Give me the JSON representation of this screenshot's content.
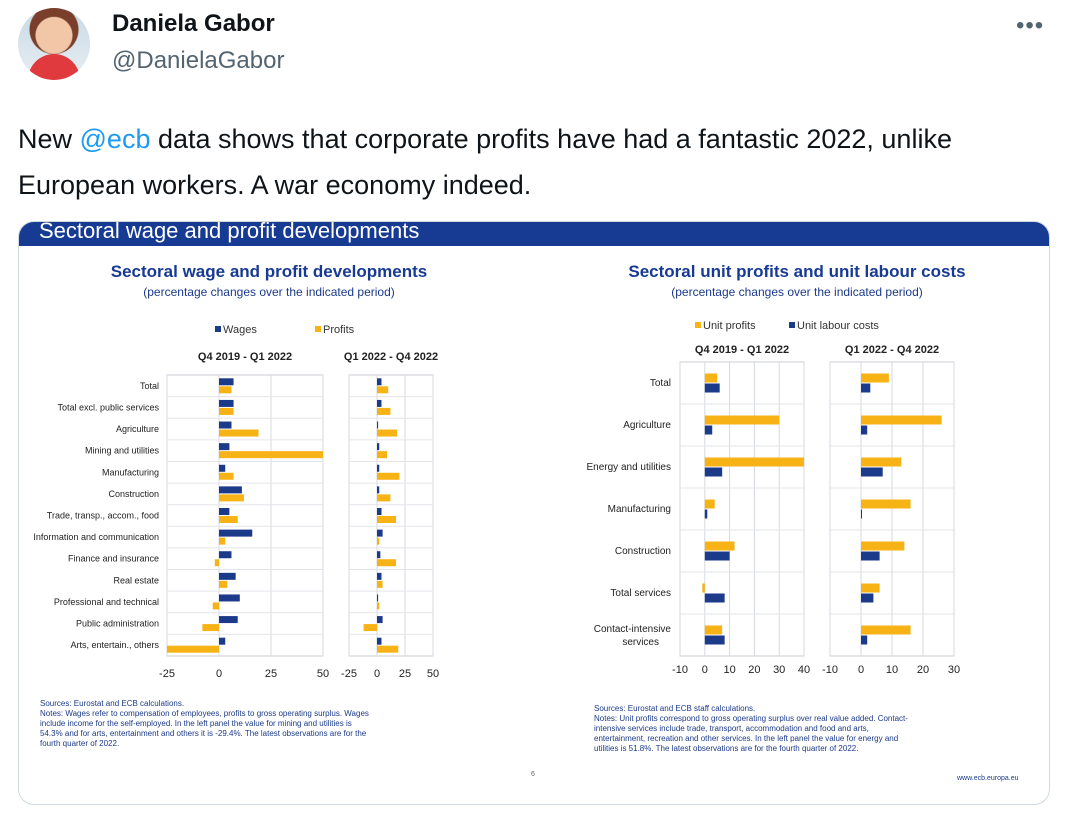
{
  "author": {
    "name": "Daniela Gabor",
    "handle": "@DanielaGabor"
  },
  "menu_icon": "more-dots-icon",
  "tweet": {
    "before": "New ",
    "mention": "@ecb",
    "after": " data shows that corporate profits have had a fantastic 2022, unlike European workers. A war economy indeed."
  },
  "slide": {
    "banner_title": "Sectoral wage and profit developments",
    "page_number": "6",
    "url": "www.ecb.europa.eu",
    "colors": {
      "navy": "#1c3a8a",
      "gold": "#f7b316",
      "banner": "#173a93"
    }
  },
  "chart_data": [
    {
      "type": "bar",
      "title": "Sectoral wage and profit developments",
      "subtitle": "(percentage changes over the indicated period)",
      "legend": [
        "Wages",
        "Profits"
      ],
      "panels": [
        "Q4 2019 - Q1 2022",
        "Q1 2022 - Q4 2022"
      ],
      "categories": [
        "Total",
        "Total excl. public services",
        "Agriculture",
        "Mining and utilities",
        "Manufacturing",
        "Construction",
        "Trade, transp., accom., food",
        "Information and communication",
        "Finance and insurance",
        "Real estate",
        "Professional and technical",
        "Public administration",
        "Arts, entertain., others"
      ],
      "series": [
        {
          "name": "Wages",
          "panel": 0,
          "values": [
            7,
            7,
            6,
            5,
            3,
            11,
            5,
            16,
            6,
            8,
            10,
            9,
            3
          ]
        },
        {
          "name": "Profits",
          "panel": 0,
          "values": [
            6,
            7,
            19,
            50,
            7,
            12,
            9,
            3,
            -2,
            4,
            -3,
            -8,
            -25
          ]
        },
        {
          "name": "Wages",
          "panel": 1,
          "values": [
            4,
            4,
            1,
            2,
            2,
            2,
            4,
            5,
            3,
            4,
            1,
            5,
            4
          ]
        },
        {
          "name": "Profits",
          "panel": 1,
          "values": [
            10,
            12,
            18,
            9,
            20,
            12,
            17,
            2,
            17,
            5,
            2,
            -12,
            19
          ]
        }
      ],
      "xlim": [
        [
          -25,
          50
        ],
        [
          -25,
          50
        ]
      ],
      "xticks": [
        [
          "-25",
          "0",
          "25",
          "50"
        ],
        [
          "-25",
          "0",
          "25",
          "50"
        ]
      ],
      "sources": "Sources: Eurostat and ECB calculations.",
      "notes": [
        "Notes: Wages refer to compensation of employees, profits to gross operating surplus. Wages",
        "include income for the self-employed. In the left panel the value for mining and utilities is",
        "54.3% and for arts, entertainment and others it is -29.4%. The latest observations are for the",
        "fourth quarter of 2022."
      ]
    },
    {
      "type": "bar",
      "title": "Sectoral unit profits and unit labour costs",
      "subtitle": "(percentage changes over the indicated period)",
      "legend": [
        "Unit profits",
        "Unit labour costs"
      ],
      "panels": [
        "Q4 2019  - Q1 2022",
        "Q1 2022  - Q4 2022"
      ],
      "categories": [
        "Total",
        "Agriculture",
        "Energy and utilities",
        "Manufacturing",
        "Construction",
        "Total services",
        "Contact-intensive services"
      ],
      "series": [
        {
          "name": "Unit profits",
          "panel": 0,
          "values": [
            5,
            30,
            40,
            4,
            12,
            -1,
            7
          ]
        },
        {
          "name": "Unit labour costs",
          "panel": 0,
          "values": [
            6,
            3,
            7,
            1,
            10,
            8,
            8
          ]
        },
        {
          "name": "Unit profits",
          "panel": 1,
          "values": [
            9,
            26,
            13,
            16,
            14,
            6,
            16
          ]
        },
        {
          "name": "Unit labour costs",
          "panel": 1,
          "values": [
            3,
            2,
            7,
            0,
            6,
            4,
            2
          ]
        }
      ],
      "xlim": [
        [
          -10,
          40
        ],
        [
          -10,
          30
        ]
      ],
      "xticks": [
        [
          "-10",
          "0",
          "10",
          "20",
          "30",
          "40"
        ],
        [
          "-10",
          "0",
          "10",
          "20",
          "30"
        ]
      ],
      "sources": "Sources: Eurostat and ECB staff calculations.",
      "notes": [
        "Notes: Unit profits correspond to gross operating surplus over real value added. Contact-",
        "intensive services include trade, transport, accommodation and food and arts,",
        "entertainment, recreation and other services. In the left panel the value for energy and",
        "utilities is 51.8%. The latest observations are for the fourth quarter of 2022."
      ]
    }
  ]
}
